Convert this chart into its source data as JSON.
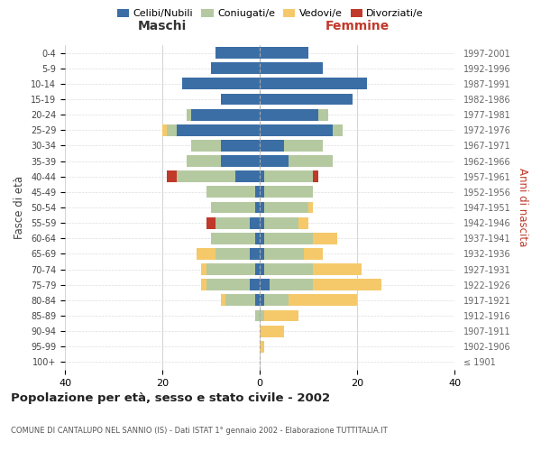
{
  "age_groups": [
    "100+",
    "95-99",
    "90-94",
    "85-89",
    "80-84",
    "75-79",
    "70-74",
    "65-69",
    "60-64",
    "55-59",
    "50-54",
    "45-49",
    "40-44",
    "35-39",
    "30-34",
    "25-29",
    "20-24",
    "15-19",
    "10-14",
    "5-9",
    "0-4"
  ],
  "birth_years": [
    "≤ 1901",
    "1902-1906",
    "1907-1911",
    "1912-1916",
    "1917-1921",
    "1922-1926",
    "1927-1931",
    "1932-1936",
    "1937-1941",
    "1942-1946",
    "1947-1951",
    "1952-1956",
    "1957-1961",
    "1962-1966",
    "1967-1971",
    "1972-1976",
    "1977-1981",
    "1982-1986",
    "1987-1991",
    "1992-1996",
    "1997-2001"
  ],
  "maschi": {
    "celibi": [
      0,
      0,
      0,
      0,
      1,
      2,
      1,
      2,
      1,
      2,
      1,
      1,
      5,
      8,
      8,
      17,
      14,
      8,
      16,
      10,
      9
    ],
    "coniugati": [
      0,
      0,
      0,
      1,
      6,
      9,
      10,
      7,
      9,
      7,
      9,
      10,
      12,
      7,
      6,
      2,
      1,
      0,
      0,
      0,
      0
    ],
    "vedovi": [
      0,
      0,
      0,
      0,
      1,
      1,
      1,
      4,
      0,
      0,
      0,
      0,
      0,
      0,
      0,
      1,
      0,
      0,
      0,
      0,
      0
    ],
    "divorziati": [
      0,
      0,
      0,
      0,
      0,
      0,
      0,
      0,
      0,
      2,
      0,
      0,
      2,
      0,
      0,
      0,
      0,
      0,
      0,
      0,
      0
    ]
  },
  "femmine": {
    "nubili": [
      0,
      0,
      0,
      0,
      1,
      2,
      1,
      1,
      1,
      1,
      1,
      1,
      1,
      6,
      5,
      15,
      12,
      19,
      22,
      13,
      10
    ],
    "coniugate": [
      0,
      0,
      0,
      1,
      5,
      9,
      10,
      8,
      10,
      7,
      9,
      10,
      10,
      9,
      8,
      2,
      2,
      0,
      0,
      0,
      0
    ],
    "vedove": [
      0,
      1,
      5,
      7,
      14,
      14,
      10,
      4,
      5,
      2,
      1,
      0,
      0,
      0,
      0,
      0,
      0,
      0,
      0,
      0,
      0
    ],
    "divorziate": [
      0,
      0,
      0,
      0,
      0,
      0,
      0,
      0,
      0,
      0,
      0,
      0,
      1,
      0,
      0,
      0,
      0,
      0,
      0,
      0,
      0
    ]
  },
  "colors": {
    "celibi": "#3b6ea5",
    "coniugati": "#b5c9a0",
    "vedovi": "#f5c96a",
    "divorziati": "#c0392b"
  },
  "xlim": 40,
  "title": "Popolazione per età, sesso e stato civile - 2002",
  "subtitle": "COMUNE DI CANTALUPO NEL SANNIO (IS) - Dati ISTAT 1° gennaio 2002 - Elaborazione TUTTITALIA.IT",
  "ylabel_left": "Fasce di età",
  "ylabel_right": "Anni di nascita",
  "legend_labels": [
    "Celibi/Nubili",
    "Coniugati/e",
    "Vedovi/e",
    "Divorziati/e"
  ],
  "maschi_label": "Maschi",
  "femmine_label": "Femmine"
}
